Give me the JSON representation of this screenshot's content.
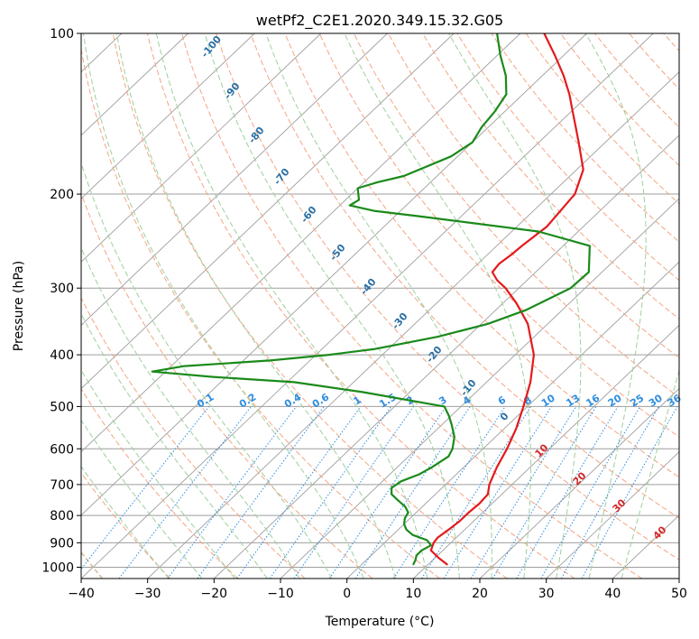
{
  "chart_data": {
    "type": "line",
    "subtype": "skew-T log-P diagram",
    "title": "wetPf2_C2E1.2020.349.15.32.G05",
    "xlabel": "Temperature (°C)",
    "ylabel": "Pressure (hPa)",
    "xlim": [
      -40,
      50
    ],
    "ylim": [
      1050,
      100
    ],
    "y_scale": "log",
    "x_ticks": [
      "−40",
      "−30",
      "−20",
      "−10",
      "0",
      "10",
      "20",
      "30",
      "40",
      "50"
    ],
    "y_ticks": [
      "100",
      "200",
      "300",
      "400",
      "500",
      "600",
      "700",
      "800",
      "900",
      "1000"
    ],
    "grid": true,
    "series": [
      {
        "name": "",
        "color": "#e31a1c",
        "pressure": [
          990,
          960,
          930,
          900,
          880,
          850,
          820,
          790,
          760,
          730,
          700,
          650,
          600,
          550,
          500,
          450,
          400,
          350,
          320,
          300,
          290,
          280,
          270,
          260,
          250,
          230,
          200,
          180,
          160,
          150,
          140,
          130,
          120,
          110,
          100
        ],
        "temperature": [
          13.0,
          10.5,
          8.2,
          7.4,
          7.2,
          7.6,
          7.9,
          7.9,
          8.1,
          7.9,
          6.6,
          5.0,
          3.6,
          1.8,
          -0.6,
          -3.4,
          -7.2,
          -13.0,
          -18.0,
          -22.0,
          -24.5,
          -26.5,
          -26.8,
          -26.4,
          -26.2,
          -25.5,
          -26.4,
          -29.0,
          -34.0,
          -36.8,
          -39.8,
          -43.0,
          -46.8,
          -51.3,
          -56.4
        ]
      },
      {
        "name": "",
        "color": "#1a8a1a",
        "pressure": [
          990,
          970,
          950,
          930,
          910,
          890,
          870,
          850,
          830,
          810,
          790,
          770,
          750,
          730,
          710,
          690,
          670,
          650,
          620,
          600,
          570,
          540,
          520,
          500,
          470,
          450,
          440,
          430,
          420,
          410,
          400,
          390,
          370,
          350,
          330,
          300,
          280,
          250,
          235,
          220,
          215,
          210,
          205,
          200,
          195,
          190,
          185,
          170,
          160,
          150,
          140,
          130,
          120,
          110,
          100
        ],
        "temperature": [
          7.8,
          7.4,
          6.8,
          6.8,
          7.4,
          6.0,
          3.0,
          1.2,
          0.0,
          -0.8,
          -1.2,
          -2.6,
          -4.6,
          -6.6,
          -7.6,
          -7.2,
          -5.6,
          -4.8,
          -4.0,
          -4.6,
          -6.2,
          -8.6,
          -10.4,
          -12.5,
          -27.0,
          -39.0,
          -52.0,
          -62.0,
          -58.0,
          -46.0,
          -38.0,
          -32.0,
          -24.5,
          -19.0,
          -15.5,
          -12.2,
          -12.0,
          -16.0,
          -26.0,
          -46.5,
          -54.0,
          -58.5,
          -58.0,
          -59.0,
          -60.0,
          -58.0,
          -55.0,
          -51.0,
          -50.0,
          -51.0,
          -51.5,
          -52.5,
          -55.5,
          -59.5,
          -63.5
        ]
      }
    ]
  },
  "mixing_ratio_labels": [
    "0.1",
    "0.2",
    "0.4",
    "0.6",
    "1",
    "1.5",
    "2",
    "3",
    "4",
    "6",
    "8",
    "10",
    "13",
    "16",
    "20",
    "25",
    "30",
    "36"
  ],
  "moist_adiabat_labels": [
    "-100",
    "-90",
    "-80",
    "-70",
    "-60",
    "-50",
    "-40",
    "-30",
    "-20",
    "-10",
    "0"
  ],
  "dry_adiabat_labels": [
    "10",
    "20",
    "30",
    "40"
  ],
  "colors": {
    "isotherm": "#9e9e9e",
    "dry_adiabat": "#f4a582",
    "moist_adiabat": "#9ecf9e",
    "mixing_ratio": "#2e8de0",
    "hidden_adiabat": "#d2b48c"
  }
}
